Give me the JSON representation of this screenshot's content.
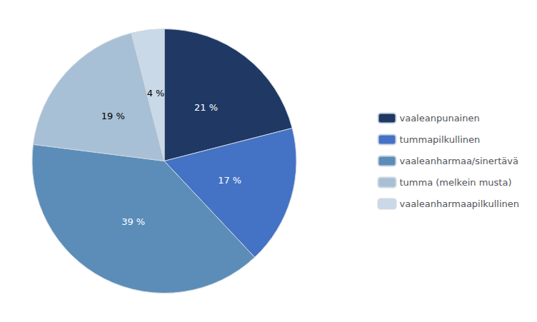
{
  "chart_data": {
    "type": "pie",
    "categories": [
      "vaaleanpunainen",
      "tummapilkullinen",
      "vaaleanharmaa/sinertävä",
      "tumma (melkein musta)",
      "vaaleanharmaapilkullinen"
    ],
    "values": [
      21,
      17,
      39,
      19,
      4
    ],
    "value_labels": [
      "21 %",
      "17 %",
      "39 %",
      "19 %",
      "4 %"
    ],
    "colors": [
      "#1F3864",
      "#4472C4",
      "#5B8DB8",
      "#A8C0D6",
      "#C9D9E8"
    ],
    "data_labels": true,
    "legend": "right"
  }
}
